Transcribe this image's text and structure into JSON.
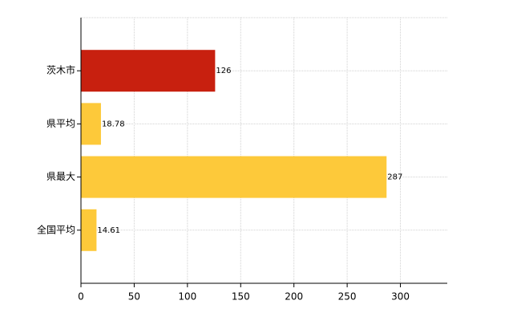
{
  "chart_data": {
    "type": "barh",
    "categories": [
      "茨木市",
      "県平均",
      "県最大",
      "全国平均"
    ],
    "values": [
      126,
      18.78,
      287,
      14.61
    ],
    "colors": [
      "#c8200f",
      "#fdc93a",
      "#fdc93a",
      "#fdc93a"
    ],
    "xlim": [
      0,
      344
    ],
    "xticks": [
      0,
      50,
      100,
      150,
      200,
      250,
      300
    ],
    "grid": true
  }
}
